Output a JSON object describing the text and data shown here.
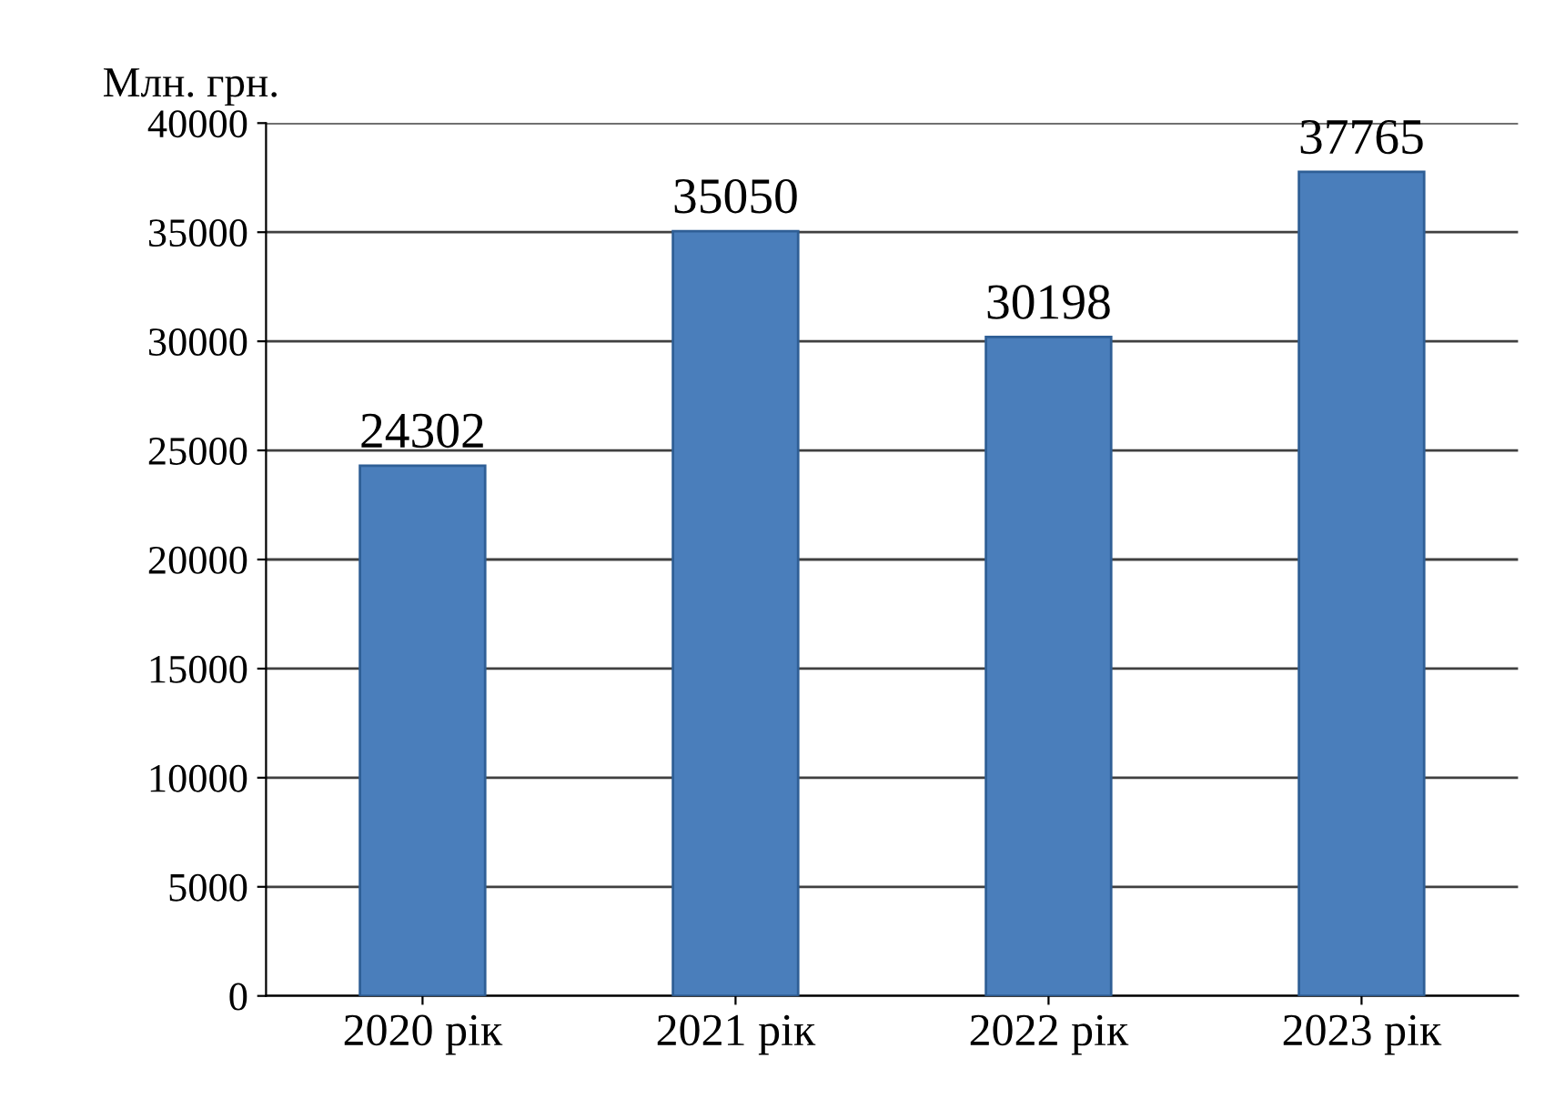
{
  "chart_data": {
    "type": "bar",
    "ylabel": "Млн. грн.",
    "categories": [
      "2020 рік",
      "2021 рік",
      "2022 рік",
      "2023 рік"
    ],
    "values": [
      24302,
      35050,
      30198,
      37765
    ],
    "color": "#4a7ebb",
    "ylim": [
      0,
      40000
    ],
    "yticks": [
      0,
      5000,
      10000,
      15000,
      20000,
      25000,
      30000,
      35000,
      40000
    ],
    "grid": "y",
    "data_labels": true
  }
}
